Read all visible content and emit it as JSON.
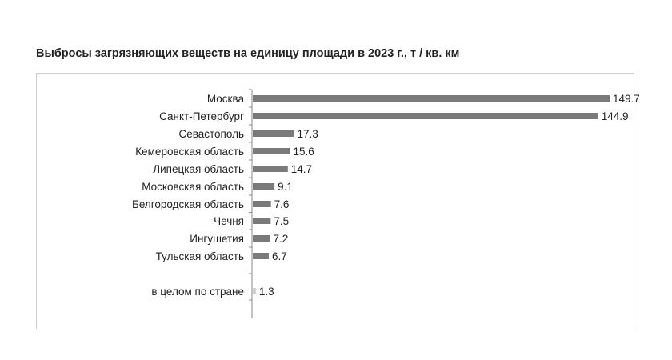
{
  "chart_data": {
    "type": "bar",
    "orientation": "horizontal",
    "title": "Выбросы загрязняющих веществ на единицу площади в 2023 г., т / кв. км",
    "xlabel": "",
    "ylabel": "",
    "xlim": [
      0,
      149.7
    ],
    "grid": false,
    "legend": "none",
    "bar_color": "#7a7a7a",
    "categories": [
      "Москва",
      "Санкт-Петербург",
      "Севастополь",
      "Кемеровская область",
      "Липецкая область",
      "Московская область",
      "Белгородская область",
      "Чечня",
      "Ингушетия",
      "Тульская область",
      "в целом по стране"
    ],
    "values": [
      149.7,
      144.9,
      17.3,
      15.6,
      14.7,
      9.1,
      7.6,
      7.5,
      7.2,
      6.7,
      1.3
    ],
    "value_labels": [
      "149.7",
      "144.9",
      "17.3",
      "15.6",
      "14.7",
      "9.1",
      "7.6",
      "7.5",
      "7.2",
      "6.7",
      "1.3"
    ]
  }
}
